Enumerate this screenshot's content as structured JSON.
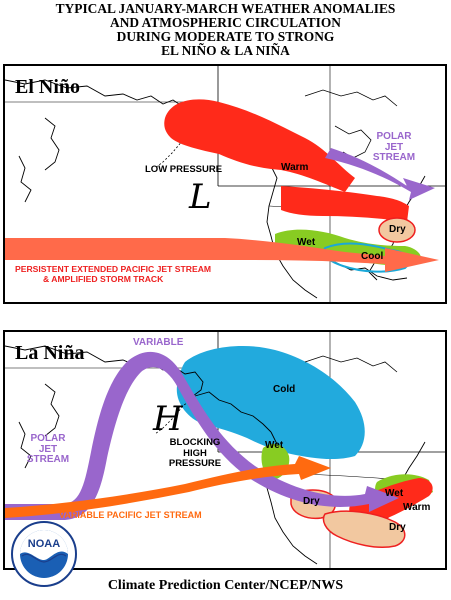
{
  "title": {
    "lines": [
      "TYPICAL JANUARY-MARCH WEATHER ANOMALIES",
      "AND ATMOSPHERIC CIRCULATION",
      "DURING MODERATE TO STRONG",
      "EL NIÑO & LA NIÑA"
    ]
  },
  "elnino": {
    "label": "El Niño",
    "low_pressure": "LOW PRESSURE",
    "low_symbol": "L",
    "warm": "Warm",
    "polar_jet": [
      "POLAR",
      "JET",
      "STREAM"
    ],
    "dry": "Dry",
    "wet": "Wet",
    "cool": "Cool",
    "pacific_jet": [
      "PERSISTENT EXTENDED PACIFIC JET STREAM",
      "& AMPLIFIED STORM TRACK"
    ]
  },
  "lanina": {
    "label": "La Niña",
    "variable": "VARIABLE",
    "cold": "Cold",
    "high_symbol": "H",
    "blocking": [
      "BLOCKING",
      "HIGH",
      "PRESSURE"
    ],
    "wet_west": "Wet",
    "polar_jet": [
      "POLAR",
      "JET",
      "STREAM"
    ],
    "wet_east": "Wet",
    "warm": "Warm",
    "dry_west": "Dry",
    "dry_south": "Dry",
    "pacific_jet": "VARIABLE PACIFIC JET STREAM"
  },
  "logo": {
    "text": "NOAA"
  },
  "footer": "Climate Prediction Center/NCEP/NWS",
  "colors": {
    "warm_red": "#ff2a1a",
    "wet_green": "#88cc22",
    "cool_blue": "#1aa8d8",
    "cold_blue": "#22aadd",
    "dry_tan": "#f2c8a0",
    "polar_purple": "#9966cc",
    "pacific_orange": "#ff6a10",
    "label_red": "#ee2020",
    "label_purple": "#9966cc"
  }
}
